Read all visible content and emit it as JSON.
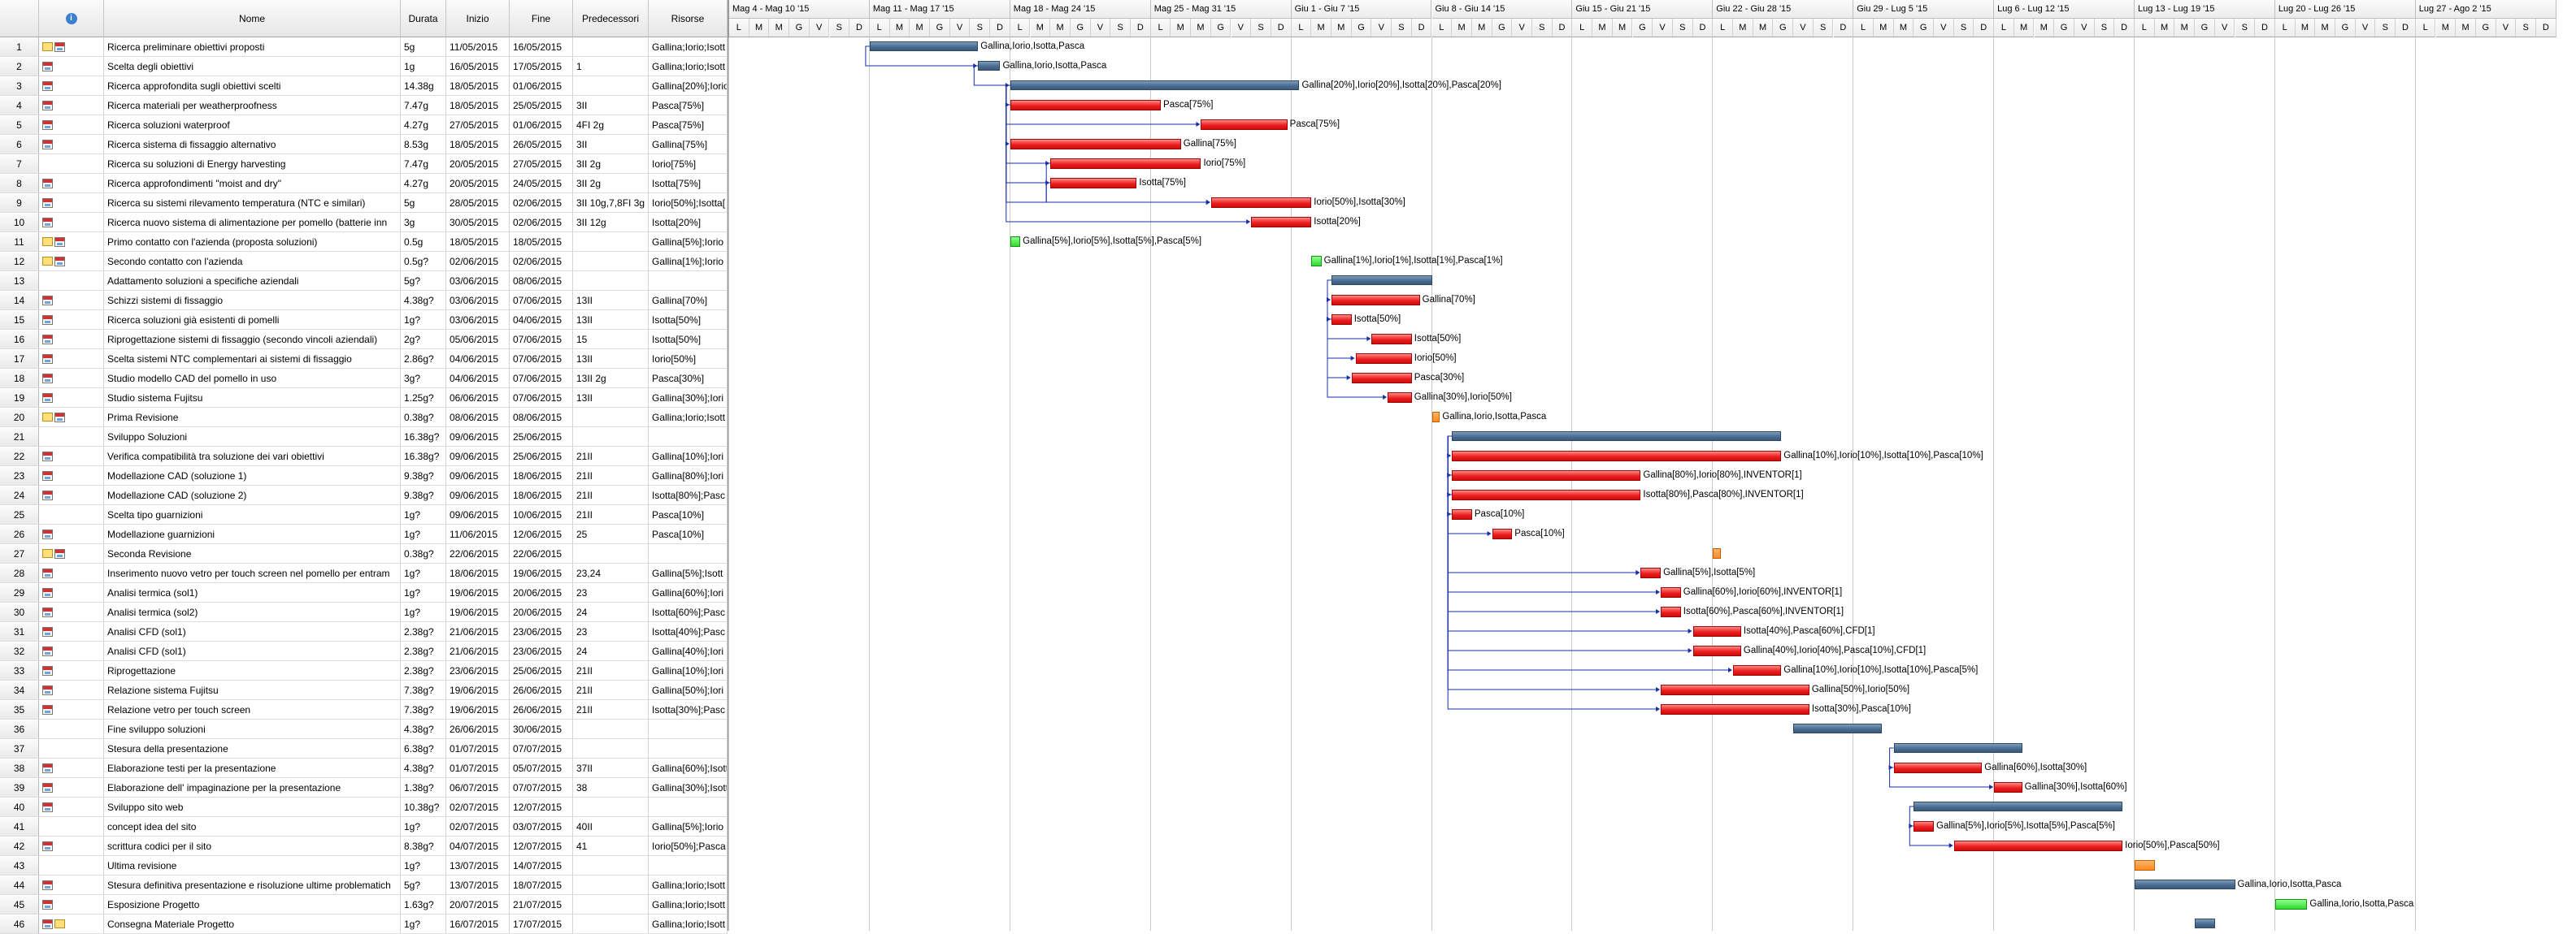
{
  "columns": {
    "num": "",
    "info_icon": "info-icon",
    "name": "Nome",
    "duration": "Durata",
    "start": "Inizio",
    "end": "Fine",
    "pred": "Predecessori",
    "res": "Risorse"
  },
  "weeks": [
    "Mag 4 - Mag 10 '15",
    "Mag 11 - Mag 17 '15",
    "Mag 18 - Mag 24 '15",
    "Mag 25 - Mag 31 '15",
    "Giu 1 - Giu 7 '15",
    "Giu 8 - Giu 14 '15",
    "Giu 15 - Giu 21 '15",
    "Giu 22 - Giu 28 '15",
    "Giu 29 - Lug 5 '15",
    "Lug 6 - Lug 12 '15",
    "Lug 13 - Lug 19 '15",
    "Lug 20 - Lug 26 '15",
    "Lug 27 - Ago 2 '15"
  ],
  "days": [
    "L",
    "M",
    "M",
    "G",
    "V",
    "S",
    "D"
  ],
  "tasks": [
    {
      "id": "1",
      "icons": [
        "note",
        "cal"
      ],
      "name": "Ricerca preliminare obiettivi proposti",
      "dur": "5g",
      "start": "11/05/2015",
      "end": "16/05/2015",
      "pred": "",
      "res": "Gallina;Iorio;Isott",
      "bar": {
        "type": "summary",
        "s": 7,
        "e": 12.4
      },
      "label": "Gallina,Iorio,Isotta,Pasca"
    },
    {
      "id": "2",
      "icons": [
        "cal"
      ],
      "name": "Scelta degli obiettivi",
      "dur": "1g",
      "start": "16/05/2015",
      "end": "17/05/2015",
      "pred": "1",
      "res": "Gallina;Iorio;Isott",
      "bar": {
        "type": "summary",
        "s": 12.4,
        "e": 13.5
      },
      "label": "Gallina,Iorio,Isotta,Pasca"
    },
    {
      "id": "3",
      "icons": [
        "cal"
      ],
      "name": "Ricerca approfondita sugli obiettivi scelti",
      "dur": "14.38g",
      "start": "18/05/2015",
      "end": "01/06/2015",
      "pred": "",
      "res": "Gallina[20%];Iorio",
      "bar": {
        "type": "summary",
        "s": 14,
        "e": 28.4
      },
      "label": "Gallina[20%],Iorio[20%],Isotta[20%],Pasca[20%]"
    },
    {
      "id": "4",
      "icons": [
        "cal"
      ],
      "name": "Ricerca materiali per weatherproofness",
      "dur": "7.47g",
      "start": "18/05/2015",
      "end": "25/05/2015",
      "pred": "3II",
      "res": "Pasca[75%]",
      "bar": {
        "type": "task",
        "s": 14,
        "e": 21.5
      },
      "label": "Pasca[75%]"
    },
    {
      "id": "5",
      "icons": [
        "cal"
      ],
      "name": "Ricerca soluzioni waterproof",
      "dur": "4.27g",
      "start": "27/05/2015",
      "end": "01/06/2015",
      "pred": "4FI 2g",
      "res": "Pasca[75%]",
      "bar": {
        "type": "task",
        "s": 23.5,
        "e": 27.8
      },
      "label": "Pasca[75%]"
    },
    {
      "id": "6",
      "icons": [
        "cal"
      ],
      "name": "Ricerca sistema di fissaggio alternativo",
      "dur": "8.53g",
      "start": "18/05/2015",
      "end": "26/05/2015",
      "pred": "3II",
      "res": "Gallina[75%]",
      "bar": {
        "type": "task",
        "s": 14,
        "e": 22.5
      },
      "label": "Gallina[75%]"
    },
    {
      "id": "7",
      "icons": [],
      "name": "Ricerca su soluzioni di Energy harvesting",
      "dur": "7.47g",
      "start": "20/05/2015",
      "end": "27/05/2015",
      "pred": "3II 2g",
      "res": "Iorio[75%]",
      "bar": {
        "type": "task",
        "s": 16,
        "e": 23.5
      },
      "label": "Iorio[75%]"
    },
    {
      "id": "8",
      "icons": [
        "cal"
      ],
      "name": "Ricerca approfondimenti \"moist and dry\"",
      "dur": "4.27g",
      "start": "20/05/2015",
      "end": "24/05/2015",
      "pred": "3II 2g",
      "res": "Isotta[75%]",
      "bar": {
        "type": "task",
        "s": 16,
        "e": 20.3
      },
      "label": "Isotta[75%]"
    },
    {
      "id": "9",
      "icons": [
        "cal"
      ],
      "name": "Ricerca su sistemi rilevamento temperatura (NTC e similari)",
      "dur": "5g",
      "start": "28/05/2015",
      "end": "02/06/2015",
      "pred": "3II 10g,7,8FI 3g",
      "res": "Iorio[50%];Isotta[",
      "bar": {
        "type": "task",
        "s": 24,
        "e": 29
      },
      "label": "Iorio[50%],Isotta[30%]"
    },
    {
      "id": "10",
      "icons": [
        "cal"
      ],
      "name": "Ricerca nuovo sistema di alimentazione per pomello (batterie inn",
      "dur": "3g",
      "start": "30/05/2015",
      "end": "02/06/2015",
      "pred": "3II 12g",
      "res": "Isotta[20%]",
      "bar": {
        "type": "task",
        "s": 26,
        "e": 29
      },
      "label": "Isotta[20%]"
    },
    {
      "id": "11",
      "icons": [
        "note",
        "cal"
      ],
      "name": "Primo contatto con l'azienda (proposta soluzioni)",
      "dur": "0.5g",
      "start": "18/05/2015",
      "end": "18/05/2015",
      "pred": "",
      "res": "Gallina[5%];Iorio",
      "bar": {
        "type": "milestone-g",
        "s": 14,
        "e": 14.5
      },
      "label": "Gallina[5%],Iorio[5%],Isotta[5%],Pasca[5%]"
    },
    {
      "id": "12",
      "icons": [
        "note",
        "cal"
      ],
      "name": "Secondo contatto con l'azienda",
      "dur": "0.5g?",
      "start": "02/06/2015",
      "end": "02/06/2015",
      "pred": "",
      "res": "Gallina[1%];Iorio",
      "bar": {
        "type": "milestone-g",
        "s": 29,
        "e": 29.5
      },
      "label": "Gallina[1%],Iorio[1%],Isotta[1%],Pasca[1%]"
    },
    {
      "id": "13",
      "icons": [],
      "name": "Adattamento soluzioni a specifiche aziendali",
      "dur": "5g?",
      "start": "03/06/2015",
      "end": "08/06/2015",
      "pred": "",
      "res": "",
      "bar": {
        "type": "summary",
        "s": 30,
        "e": 35
      },
      "label": ""
    },
    {
      "id": "14",
      "icons": [
        "cal"
      ],
      "name": "Schizzi sistemi di fissaggio",
      "dur": "4.38g?",
      "start": "03/06/2015",
      "end": "07/06/2015",
      "pred": "13II",
      "res": "Gallina[70%]",
      "bar": {
        "type": "task",
        "s": 30,
        "e": 34.4
      },
      "label": "Gallina[70%]"
    },
    {
      "id": "15",
      "icons": [
        "cal"
      ],
      "name": "Ricerca soluzioni già esistenti di pomelli",
      "dur": "1g?",
      "start": "03/06/2015",
      "end": "04/06/2015",
      "pred": "13II",
      "res": "Isotta[50%]",
      "bar": {
        "type": "task",
        "s": 30,
        "e": 31
      },
      "label": "Isotta[50%]"
    },
    {
      "id": "16",
      "icons": [
        "cal"
      ],
      "name": "Riprogettazione sistemi di fissaggio (secondo vincoli aziendali)",
      "dur": "2g?",
      "start": "05/06/2015",
      "end": "07/06/2015",
      "pred": "15",
      "res": "Isotta[50%]",
      "bar": {
        "type": "task",
        "s": 32,
        "e": 34
      },
      "label": "Isotta[50%]"
    },
    {
      "id": "17",
      "icons": [
        "cal"
      ],
      "name": "Scelta sistemi NTC complementari ai sistemi di fissaggio",
      "dur": "2.86g?",
      "start": "04/06/2015",
      "end": "07/06/2015",
      "pred": "13II",
      "res": "Iorio[50%]",
      "bar": {
        "type": "task",
        "s": 31.2,
        "e": 34
      },
      "label": "Iorio[50%]"
    },
    {
      "id": "18",
      "icons": [
        "cal"
      ],
      "name": "Studio modello CAD del pomello in uso",
      "dur": "3g?",
      "start": "04/06/2015",
      "end": "07/06/2015",
      "pred": "13II 2g",
      "res": "Pasca[30%]",
      "bar": {
        "type": "task",
        "s": 31,
        "e": 34
      },
      "label": "Pasca[30%]"
    },
    {
      "id": "19",
      "icons": [
        "cal"
      ],
      "name": "Studio sistema Fujitsu",
      "dur": "1.25g?",
      "start": "06/06/2015",
      "end": "07/06/2015",
      "pred": "13II",
      "res": "Gallina[30%];Iori",
      "bar": {
        "type": "task",
        "s": 32.8,
        "e": 34
      },
      "label": "Gallina[30%],Iorio[50%]"
    },
    {
      "id": "20",
      "icons": [
        "note",
        "cal"
      ],
      "name": "Prima Revisione",
      "dur": "0.38g?",
      "start": "08/06/2015",
      "end": "08/06/2015",
      "pred": "",
      "res": "Gallina;Iorio;Isott",
      "bar": {
        "type": "milestone-o",
        "s": 35,
        "e": 35.4
      },
      "label": "Gallina,Iorio,Isotta,Pasca"
    },
    {
      "id": "21",
      "icons": [],
      "name": "Sviluppo Soluzioni",
      "dur": "16.38g?",
      "start": "09/06/2015",
      "end": "25/06/2015",
      "pred": "",
      "res": "",
      "bar": {
        "type": "summary",
        "s": 36,
        "e": 52.4
      },
      "label": ""
    },
    {
      "id": "22",
      "icons": [
        "cal"
      ],
      "name": "Verifica compatibilità tra soluzione dei vari obiettivi",
      "dur": "16.38g?",
      "start": "09/06/2015",
      "end": "25/06/2015",
      "pred": "21II",
      "res": "Gallina[10%];Iori",
      "bar": {
        "type": "task",
        "s": 36,
        "e": 52.4
      },
      "label": "Gallina[10%],Iorio[10%],Isotta[10%],Pasca[10%]"
    },
    {
      "id": "23",
      "icons": [
        "cal"
      ],
      "name": "Modellazione CAD (soluzione 1)",
      "dur": "9.38g?",
      "start": "09/06/2015",
      "end": "18/06/2015",
      "pred": "21II",
      "res": "Gallina[80%];Iori",
      "bar": {
        "type": "task",
        "s": 36,
        "e": 45.4
      },
      "label": "Gallina[80%],Iorio[80%],INVENTOR[1]"
    },
    {
      "id": "24",
      "icons": [
        "cal"
      ],
      "name": "Modellazione CAD (soluzione 2)",
      "dur": "9.38g?",
      "start": "09/06/2015",
      "end": "18/06/2015",
      "pred": "21II",
      "res": "Isotta[80%];Pasc",
      "bar": {
        "type": "task",
        "s": 36,
        "e": 45.4
      },
      "label": "Isotta[80%],Pasca[80%],INVENTOR[1]"
    },
    {
      "id": "25",
      "icons": [],
      "name": "Scelta tipo guarnizioni",
      "dur": "1g?",
      "start": "09/06/2015",
      "end": "10/06/2015",
      "pred": "21II",
      "res": "Pasca[10%]",
      "bar": {
        "type": "task",
        "s": 36,
        "e": 37
      },
      "label": "Pasca[10%]"
    },
    {
      "id": "26",
      "icons": [
        "cal"
      ],
      "name": "Modellazione guarnizioni",
      "dur": "1g?",
      "start": "11/06/2015",
      "end": "12/06/2015",
      "pred": "25",
      "res": "Pasca[10%]",
      "bar": {
        "type": "task",
        "s": 38,
        "e": 39
      },
      "label": "Pasca[10%]"
    },
    {
      "id": "27",
      "icons": [
        "note",
        "cal"
      ],
      "name": "Seconda Revisione",
      "dur": "0.38g?",
      "start": "22/06/2015",
      "end": "22/06/2015",
      "pred": "",
      "res": "",
      "bar": {
        "type": "milestone-o",
        "s": 49,
        "e": 49.4
      },
      "label": ""
    },
    {
      "id": "28",
      "icons": [
        "cal"
      ],
      "name": "Inserimento nuovo vetro per touch screen nel pomello per entram",
      "dur": "1g?",
      "start": "18/06/2015",
      "end": "19/06/2015",
      "pred": "23,24",
      "res": "Gallina[5%];Isott",
      "bar": {
        "type": "task",
        "s": 45.4,
        "e": 46.4
      },
      "label": "Gallina[5%],Isotta[5%]"
    },
    {
      "id": "29",
      "icons": [
        "cal"
      ],
      "name": "Analisi termica (sol1)",
      "dur": "1g?",
      "start": "19/06/2015",
      "end": "20/06/2015",
      "pred": "23",
      "res": "Gallina[60%];Iori",
      "bar": {
        "type": "task",
        "s": 46.4,
        "e": 47.4
      },
      "label": "Gallina[60%],Iorio[60%],INVENTOR[1]"
    },
    {
      "id": "30",
      "icons": [
        "cal"
      ],
      "name": "Analisi termica (sol2)",
      "dur": "1g?",
      "start": "19/06/2015",
      "end": "20/06/2015",
      "pred": "24",
      "res": "Isotta[60%];Pasc",
      "bar": {
        "type": "task",
        "s": 46.4,
        "e": 47.4
      },
      "label": "Isotta[60%],Pasca[60%],INVENTOR[1]"
    },
    {
      "id": "31",
      "icons": [
        "cal"
      ],
      "name": "Analisi CFD (sol1)",
      "dur": "2.38g?",
      "start": "21/06/2015",
      "end": "23/06/2015",
      "pred": "23",
      "res": "Isotta[40%];Pasc",
      "bar": {
        "type": "task",
        "s": 48,
        "e": 50.4
      },
      "label": "Isotta[40%],Pasca[60%],CFD[1]"
    },
    {
      "id": "32",
      "icons": [
        "cal"
      ],
      "name": "Analisi CFD (sol1)",
      "dur": "2.38g?",
      "start": "21/06/2015",
      "end": "23/06/2015",
      "pred": "24",
      "res": "Gallina[40%];Iori",
      "bar": {
        "type": "task",
        "s": 48,
        "e": 50.4
      },
      "label": "Gallina[40%],Iorio[40%],Pasca[10%],CFD[1]"
    },
    {
      "id": "33",
      "icons": [
        "cal"
      ],
      "name": "Riprogettazione",
      "dur": "2.38g?",
      "start": "23/06/2015",
      "end": "25/06/2015",
      "pred": "21II",
      "res": "Gallina[10%];Iori",
      "bar": {
        "type": "task",
        "s": 50,
        "e": 52.4
      },
      "label": "Gallina[10%],Iorio[10%],Isotta[10%],Pasca[5%]"
    },
    {
      "id": "34",
      "icons": [
        "cal"
      ],
      "name": "Relazione sistema Fujitsu",
      "dur": "7.38g?",
      "start": "19/06/2015",
      "end": "26/06/2015",
      "pred": "21II",
      "res": "Gallina[50%];Iori",
      "bar": {
        "type": "task",
        "s": 46.4,
        "e": 53.8
      },
      "label": "Gallina[50%],Iorio[50%]"
    },
    {
      "id": "35",
      "icons": [
        "cal"
      ],
      "name": "Relazione vetro per touch screen",
      "dur": "7.38g?",
      "start": "19/06/2015",
      "end": "26/06/2015",
      "pred": "21II",
      "res": "Isotta[30%];Pasc",
      "bar": {
        "type": "task",
        "s": 46.4,
        "e": 53.8
      },
      "label": "Isotta[30%],Pasca[10%]"
    },
    {
      "id": "36",
      "icons": [],
      "name": "Fine sviluppo soluzioni",
      "dur": "4.38g?",
      "start": "26/06/2015",
      "end": "30/06/2015",
      "pred": "",
      "res": "",
      "bar": {
        "type": "summary",
        "s": 53,
        "e": 57.4
      },
      "label": ""
    },
    {
      "id": "37",
      "icons": [],
      "name": "Stesura della presentazione",
      "dur": "6.38g?",
      "start": "01/07/2015",
      "end": "07/07/2015",
      "pred": "",
      "res": "",
      "bar": {
        "type": "summary",
        "s": 58,
        "e": 64.4
      },
      "label": ""
    },
    {
      "id": "38",
      "icons": [
        "cal"
      ],
      "name": "Elaborazione testi per la presentazione",
      "dur": "4.38g?",
      "start": "01/07/2015",
      "end": "05/07/2015",
      "pred": "37II",
      "res": "Gallina[60%];Isott",
      "bar": {
        "type": "task",
        "s": 58,
        "e": 62.4
      },
      "label": "Gallina[60%],Isotta[30%]"
    },
    {
      "id": "39",
      "icons": [
        "cal"
      ],
      "name": "Elaborazione dell' impaginazione per la presentazione",
      "dur": "1.38g?",
      "start": "06/07/2015",
      "end": "07/07/2015",
      "pred": "38",
      "res": "Gallina[30%];Isott",
      "bar": {
        "type": "task",
        "s": 63,
        "e": 64.4
      },
      "label": "Gallina[30%],Isotta[60%]"
    },
    {
      "id": "40",
      "icons": [
        "cal"
      ],
      "name": "Sviluppo sito web",
      "dur": "10.38g?",
      "start": "02/07/2015",
      "end": "12/07/2015",
      "pred": "",
      "res": "",
      "bar": {
        "type": "summary",
        "s": 59,
        "e": 69.4
      },
      "label": ""
    },
    {
      "id": "41",
      "icons": [],
      "name": "concept idea del sito",
      "dur": "1g?",
      "start": "02/07/2015",
      "end": "03/07/2015",
      "pred": "40II",
      "res": "Gallina[5%];Iorio",
      "bar": {
        "type": "task",
        "s": 59,
        "e": 60
      },
      "label": "Gallina[5%],Iorio[5%],Isotta[5%],Pasca[5%]"
    },
    {
      "id": "42",
      "icons": [
        "cal"
      ],
      "name": "scrittura codici per il sito",
      "dur": "8.38g?",
      "start": "04/07/2015",
      "end": "12/07/2015",
      "pred": "41",
      "res": "Iorio[50%];Pasca",
      "bar": {
        "type": "task",
        "s": 61,
        "e": 69.4
      },
      "label": "Iorio[50%],Pasca[50%]"
    },
    {
      "id": "43",
      "icons": [],
      "name": "Ultima revisione",
      "dur": "1g?",
      "start": "13/07/2015",
      "end": "14/07/2015",
      "pred": "",
      "res": "",
      "bar": {
        "type": "milestone-o",
        "s": 70,
        "e": 71
      },
      "label": ""
    },
    {
      "id": "44",
      "icons": [
        "cal"
      ],
      "name": "Stesura definitiva presentazione e risoluzione ultime problematich",
      "dur": "5g?",
      "start": "13/07/2015",
      "end": "18/07/2015",
      "pred": "",
      "res": "Gallina;Iorio;Isott",
      "bar": {
        "type": "summary",
        "s": 70,
        "e": 75
      },
      "label": "Gallina,Iorio,Isotta,Pasca"
    },
    {
      "id": "45",
      "icons": [
        "cal"
      ],
      "name": "Esposizione Progetto",
      "dur": "1.63g?",
      "start": "20/07/2015",
      "end": "21/07/2015",
      "pred": "",
      "res": "Gallina;Iorio;Isott",
      "bar": {
        "type": "milestone-g",
        "s": 77,
        "e": 78.6
      },
      "label": "Gallina,Iorio,Isotta,Pasca"
    },
    {
      "id": "46",
      "icons": [
        "cal",
        "note"
      ],
      "name": "Consegna Materiale Progetto",
      "dur": "1g?",
      "start": "16/07/2015",
      "end": "17/07/2015",
      "pred": "",
      "res": "Gallina;Iorio;Isott",
      "bar": {
        "type": "summary",
        "s": 73,
        "e": 74
      },
      "label": ""
    }
  ],
  "dependencies": [
    [
      1,
      2
    ],
    [
      2,
      3
    ],
    [
      3,
      4
    ],
    [
      4,
      5
    ],
    [
      3,
      6
    ],
    [
      3,
      7
    ],
    [
      3,
      8
    ],
    [
      3,
      9
    ],
    [
      7,
      9
    ],
    [
      8,
      9
    ],
    [
      3,
      10
    ],
    [
      13,
      14
    ],
    [
      13,
      15
    ],
    [
      15,
      16
    ],
    [
      13,
      17
    ],
    [
      13,
      18
    ],
    [
      13,
      19
    ],
    [
      21,
      22
    ],
    [
      21,
      23
    ],
    [
      21,
      24
    ],
    [
      21,
      25
    ],
    [
      25,
      26
    ],
    [
      23,
      28
    ],
    [
      24,
      28
    ],
    [
      23,
      29
    ],
    [
      24,
      30
    ],
    [
      23,
      31
    ],
    [
      24,
      32
    ],
    [
      21,
      33
    ],
    [
      21,
      34
    ],
    [
      21,
      35
    ],
    [
      37,
      38
    ],
    [
      38,
      39
    ],
    [
      40,
      41
    ],
    [
      41,
      42
    ]
  ]
}
